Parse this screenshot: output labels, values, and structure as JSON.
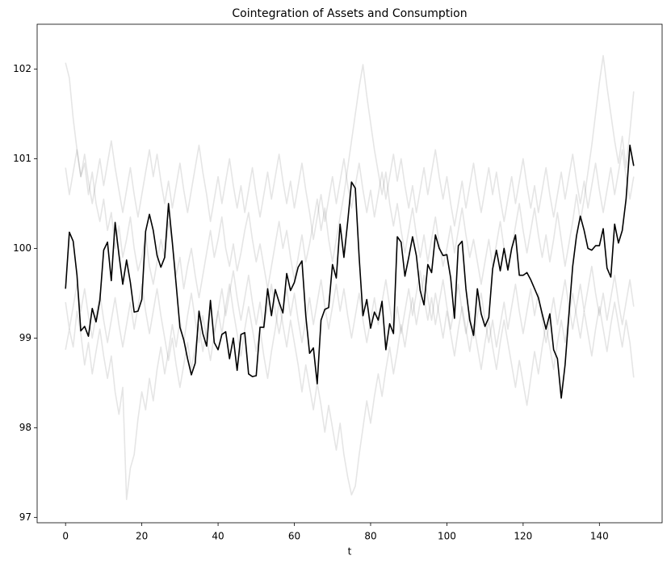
{
  "chart_data": {
    "type": "line",
    "title": "Cointegration of Assets and Consumption",
    "x_label": "t",
    "xlim": [
      -7.45,
      156.45
    ],
    "ylim": [
      96.94,
      102.5
    ],
    "xticks": [
      0,
      20,
      40,
      60,
      80,
      100,
      120,
      140
    ],
    "yticks": [
      97,
      98,
      99,
      100,
      101,
      102
    ],
    "x": [
      0,
      1,
      2,
      3,
      4,
      5,
      6,
      7,
      8,
      9,
      10,
      11,
      12,
      13,
      14,
      15,
      16,
      17,
      18,
      19,
      20,
      21,
      22,
      23,
      24,
      25,
      26,
      27,
      28,
      29,
      30,
      31,
      32,
      33,
      34,
      35,
      36,
      37,
      38,
      39,
      40,
      41,
      42,
      43,
      44,
      45,
      46,
      47,
      48,
      49,
      50,
      51,
      52,
      53,
      54,
      55,
      56,
      57,
      58,
      59,
      60,
      61,
      62,
      63,
      64,
      65,
      66,
      67,
      68,
      69,
      70,
      71,
      72,
      73,
      74,
      75,
      76,
      77,
      78,
      79,
      80,
      81,
      82,
      83,
      84,
      85,
      86,
      87,
      88,
      89,
      90,
      91,
      92,
      93,
      94,
      95,
      96,
      97,
      98,
      99,
      100,
      101,
      102,
      103,
      104,
      105,
      106,
      107,
      108,
      109,
      110,
      111,
      112,
      113,
      114,
      115,
      116,
      117,
      118,
      119,
      120,
      121,
      122,
      123,
      124,
      125,
      126,
      127,
      128,
      129,
      130,
      131,
      132,
      133,
      134,
      135,
      136,
      137,
      138,
      139,
      140,
      141,
      142,
      143,
      144,
      145,
      146,
      147,
      148,
      149
    ],
    "series": [
      {
        "color": "#000000",
        "alpha": 0.1,
        "values": [
          102.07,
          101.9,
          101.45,
          101.1,
          100.8,
          100.95,
          100.6,
          100.85,
          100.5,
          100.3,
          100.55,
          100.2,
          100.4,
          100.0,
          100.25,
          99.9,
          100.1,
          100.35,
          100.0,
          99.75,
          99.9,
          100.15,
          99.8,
          99.6,
          99.85,
          100.1,
          99.9,
          100.3,
          100.05,
          99.7,
          99.9,
          99.55,
          99.8,
          100.0,
          99.7,
          99.45,
          99.7,
          99.95,
          100.2,
          99.9,
          100.1,
          100.35,
          100.0,
          99.8,
          100.05,
          99.75,
          99.95,
          100.2,
          100.4,
          100.1,
          99.85,
          100.05,
          99.8,
          99.55,
          99.8,
          100.05,
          100.3,
          100.0,
          100.2,
          99.9,
          99.65,
          99.9,
          100.15,
          99.85,
          100.05,
          100.3,
          100.55,
          100.2,
          100.45,
          100.1,
          99.85,
          100.1,
          100.35,
          100.6,
          100.9,
          101.2,
          101.5,
          101.8,
          102.05,
          101.7,
          101.4,
          101.1,
          100.85,
          100.6,
          100.85,
          100.5,
          100.25,
          100.5,
          100.2,
          99.95,
          100.2,
          100.45,
          100.15,
          99.9,
          100.15,
          99.85,
          100.1,
          100.35,
          100.05,
          99.8,
          100.0,
          100.25,
          99.95,
          100.2,
          100.45,
          100.15,
          99.9,
          100.1,
          99.85,
          99.6,
          99.85,
          100.1,
          99.8,
          100.05,
          100.3,
          100.0,
          99.75,
          100.0,
          100.25,
          100.5,
          100.2,
          99.95,
          100.2,
          100.45,
          100.15,
          99.9,
          100.15,
          99.85,
          100.1,
          100.4,
          100.1,
          99.8,
          100.05,
          100.3,
          100.6,
          100.3,
          100.55,
          100.85,
          101.15,
          101.5,
          101.85,
          102.15,
          101.8,
          101.5,
          101.2,
          100.95,
          101.25,
          100.9,
          101.3,
          101.75
        ]
      },
      {
        "color": "#000000",
        "alpha": 0.1,
        "values": [
          98.87,
          99.1,
          98.9,
          99.3,
          99.05,
          98.7,
          98.95,
          98.6,
          98.85,
          99.1,
          98.8,
          98.55,
          98.8,
          98.4,
          98.15,
          98.45,
          97.2,
          97.55,
          97.7,
          98.1,
          98.4,
          98.2,
          98.55,
          98.3,
          98.65,
          98.9,
          98.6,
          98.85,
          99.15,
          98.9,
          99.2,
          98.95,
          99.25,
          99.5,
          99.2,
          98.95,
          99.25,
          99.0,
          98.75,
          99.05,
          99.3,
          99.05,
          99.35,
          99.6,
          99.3,
          99.05,
          98.8,
          99.1,
          99.35,
          99.1,
          98.85,
          99.1,
          98.8,
          98.55,
          98.85,
          99.1,
          99.4,
          99.15,
          98.9,
          99.2,
          98.95,
          98.7,
          98.4,
          98.7,
          98.45,
          98.2,
          98.5,
          98.25,
          97.95,
          98.25,
          98.0,
          97.75,
          98.05,
          97.7,
          97.45,
          97.25,
          97.35,
          97.7,
          98.0,
          98.3,
          98.05,
          98.35,
          98.6,
          98.35,
          98.65,
          98.9,
          98.6,
          98.85,
          99.15,
          98.9,
          99.2,
          99.45,
          99.15,
          99.4,
          99.7,
          99.45,
          99.2,
          99.5,
          99.25,
          99.0,
          99.3,
          99.05,
          98.8,
          99.1,
          99.35,
          99.1,
          98.85,
          99.15,
          98.9,
          98.65,
          98.95,
          99.2,
          98.9,
          98.65,
          98.95,
          99.2,
          98.95,
          98.7,
          98.45,
          98.75,
          98.5,
          98.25,
          98.55,
          98.85,
          98.6,
          98.9,
          99.15,
          98.9,
          98.65,
          98.95,
          99.2,
          98.95,
          99.25,
          99.5,
          99.25,
          99.0,
          99.3,
          99.05,
          98.8,
          99.1,
          99.35,
          99.1,
          98.85,
          99.15,
          99.4,
          99.15,
          98.9,
          99.2,
          98.95,
          98.56
        ]
      },
      {
        "color": "#000000",
        "alpha": 0.1,
        "values": [
          100.9,
          100.6,
          100.85,
          101.1,
          100.8,
          101.05,
          100.75,
          100.5,
          100.75,
          101.0,
          100.7,
          100.95,
          101.2,
          100.9,
          100.65,
          100.4,
          100.65,
          100.9,
          100.6,
          100.35,
          100.6,
          100.85,
          101.1,
          100.8,
          101.05,
          100.75,
          100.5,
          100.75,
          100.45,
          100.7,
          100.95,
          100.65,
          100.4,
          100.65,
          100.9,
          101.15,
          100.85,
          100.6,
          100.3,
          100.55,
          100.8,
          100.5,
          100.75,
          101.0,
          100.7,
          100.45,
          100.7,
          100.4,
          100.65,
          100.9,
          100.6,
          100.35,
          100.6,
          100.85,
          100.55,
          100.8,
          101.05,
          100.75,
          100.5,
          100.75,
          100.45,
          100.7,
          100.95,
          100.65,
          100.4,
          100.1,
          100.35,
          100.6,
          100.3,
          100.55,
          100.8,
          100.5,
          100.75,
          101.0,
          100.7,
          100.45,
          100.7,
          100.95,
          100.65,
          100.4,
          100.65,
          100.35,
          100.6,
          100.85,
          100.55,
          100.8,
          101.05,
          100.75,
          101.0,
          100.7,
          100.45,
          100.7,
          100.4,
          100.65,
          100.9,
          100.6,
          100.85,
          101.1,
          100.8,
          100.55,
          100.8,
          100.5,
          100.25,
          100.5,
          100.75,
          100.45,
          100.7,
          100.95,
          100.65,
          100.4,
          100.65,
          100.9,
          100.6,
          100.85,
          100.55,
          100.3,
          100.55,
          100.8,
          100.5,
          100.75,
          101.0,
          100.7,
          100.45,
          100.7,
          100.4,
          100.65,
          100.9,
          100.6,
          100.35,
          100.6,
          100.85,
          100.55,
          100.8,
          101.05,
          100.75,
          100.5,
          100.75,
          100.45,
          100.7,
          100.95,
          100.65,
          100.4,
          100.65,
          100.9,
          100.6,
          100.85,
          101.1,
          100.8,
          100.55,
          100.8
        ]
      },
      {
        "color": "#000000",
        "alpha": 0.1,
        "values": [
          99.4,
          99.1,
          99.35,
          99.6,
          99.3,
          99.55,
          99.25,
          99.0,
          99.25,
          99.5,
          99.2,
          98.95,
          99.2,
          99.45,
          99.15,
          98.9,
          99.15,
          99.4,
          99.1,
          99.35,
          99.6,
          99.3,
          99.05,
          99.3,
          99.55,
          99.25,
          99.0,
          98.75,
          99.0,
          98.7,
          98.45,
          98.7,
          98.95,
          98.65,
          98.9,
          99.15,
          98.85,
          99.1,
          99.35,
          99.05,
          99.3,
          99.55,
          99.25,
          99.5,
          99.75,
          99.45,
          99.2,
          99.45,
          99.7,
          99.4,
          99.15,
          99.4,
          99.1,
          99.35,
          99.6,
          99.3,
          99.05,
          99.3,
          99.55,
          99.25,
          99.5,
          99.2,
          98.95,
          99.2,
          99.45,
          99.15,
          99.4,
          99.65,
          99.35,
          99.1,
          99.35,
          99.6,
          99.3,
          99.55,
          99.25,
          99.0,
          99.25,
          99.5,
          99.2,
          98.95,
          99.2,
          99.45,
          99.15,
          99.4,
          99.65,
          99.35,
          99.1,
          99.35,
          99.05,
          99.3,
          99.55,
          99.25,
          99.5,
          99.75,
          99.45,
          99.2,
          99.45,
          99.15,
          99.4,
          99.65,
          99.35,
          99.1,
          99.35,
          99.6,
          99.3,
          99.05,
          99.3,
          99.0,
          99.25,
          99.5,
          99.2,
          98.95,
          99.2,
          98.9,
          99.15,
          99.4,
          99.1,
          99.35,
          99.6,
          99.3,
          99.05,
          99.3,
          99.55,
          99.25,
          99.5,
          99.2,
          98.95,
          99.2,
          99.45,
          99.15,
          99.4,
          99.65,
          99.35,
          99.1,
          99.35,
          99.6,
          99.3,
          99.55,
          99.8,
          99.5,
          99.25,
          99.5,
          99.2,
          99.45,
          99.7,
          99.4,
          99.15,
          99.4,
          99.65,
          99.35
        ]
      },
      {
        "color": "#000000",
        "alpha": 1,
        "values": [
          99.55,
          100.18,
          100.08,
          99.7,
          99.08,
          99.13,
          99.02,
          99.33,
          99.18,
          99.42,
          99.98,
          100.07,
          99.64,
          100.29,
          99.93,
          99.6,
          99.87,
          99.62,
          99.29,
          99.3,
          99.43,
          100.19,
          100.38,
          100.2,
          99.92,
          99.79,
          99.9,
          100.5,
          100.07,
          99.6,
          99.12,
          98.98,
          98.77,
          98.59,
          98.72,
          99.3,
          99.05,
          98.91,
          99.42,
          98.95,
          98.87,
          99.04,
          99.07,
          98.77,
          99.0,
          98.64,
          99.04,
          99.06,
          98.6,
          98.57,
          98.58,
          99.12,
          99.12,
          99.55,
          99.25,
          99.54,
          99.4,
          99.28,
          99.72,
          99.53,
          99.62,
          99.79,
          99.86,
          99.25,
          98.83,
          98.89,
          98.49,
          99.2,
          99.32,
          99.34,
          99.82,
          99.67,
          100.27,
          99.9,
          100.3,
          100.74,
          100.67,
          99.9,
          99.25,
          99.43,
          99.11,
          99.29,
          99.2,
          99.41,
          98.87,
          99.16,
          99.05,
          100.13,
          100.07,
          99.69,
          99.9,
          100.13,
          99.92,
          99.53,
          99.37,
          99.82,
          99.73,
          100.15,
          100.0,
          99.92,
          99.93,
          99.67,
          99.22,
          100.03,
          100.08,
          99.55,
          99.2,
          99.03,
          99.55,
          99.27,
          99.13,
          99.23,
          99.77,
          99.98,
          99.75,
          100.0,
          99.76,
          100.0,
          100.15,
          99.7,
          99.7,
          99.73,
          99.65,
          99.55,
          99.45,
          99.27,
          99.1,
          99.27,
          98.87,
          98.77,
          98.33,
          98.7,
          99.26,
          99.8,
          100.14,
          100.36,
          100.2,
          100.0,
          99.98,
          100.03,
          100.03,
          100.22,
          99.78,
          99.68,
          100.27,
          100.06,
          100.2,
          100.55,
          101.15,
          100.92
        ]
      }
    ]
  }
}
